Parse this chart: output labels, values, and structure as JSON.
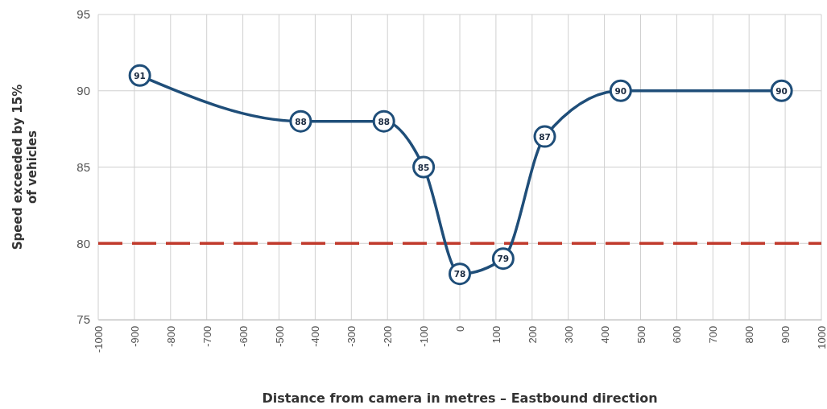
{
  "chart_data": {
    "type": "line",
    "xlabel": "Distance from camera in metres – Eastbound direction",
    "ylabel": "Speed exceeded by 15% of vehicles",
    "x": [
      -885,
      -440,
      -210,
      -100,
      0,
      120,
      235,
      445,
      890
    ],
    "series": [
      {
        "color": "#1f4e79",
        "values": [
          91,
          88,
          88,
          85,
          78,
          79,
          87,
          90,
          90
        ]
      }
    ],
    "xlim": [
      -1000,
      1000
    ],
    "xticks": [
      -1000,
      -900,
      -800,
      -700,
      -600,
      -500,
      -400,
      -300,
      -200,
      -100,
      0,
      100,
      200,
      300,
      400,
      500,
      600,
      700,
      800,
      900,
      1000
    ],
    "ylim": [
      75,
      95
    ],
    "yticks": [
      75,
      80,
      85,
      90,
      95
    ],
    "ref_lines": [
      {
        "axis": "y",
        "value": 80,
        "color": "#c0392b",
        "line_style": "dashed"
      }
    ],
    "grid": true,
    "marker": "circle",
    "line_style": "solid",
    "data_labels": true
  }
}
